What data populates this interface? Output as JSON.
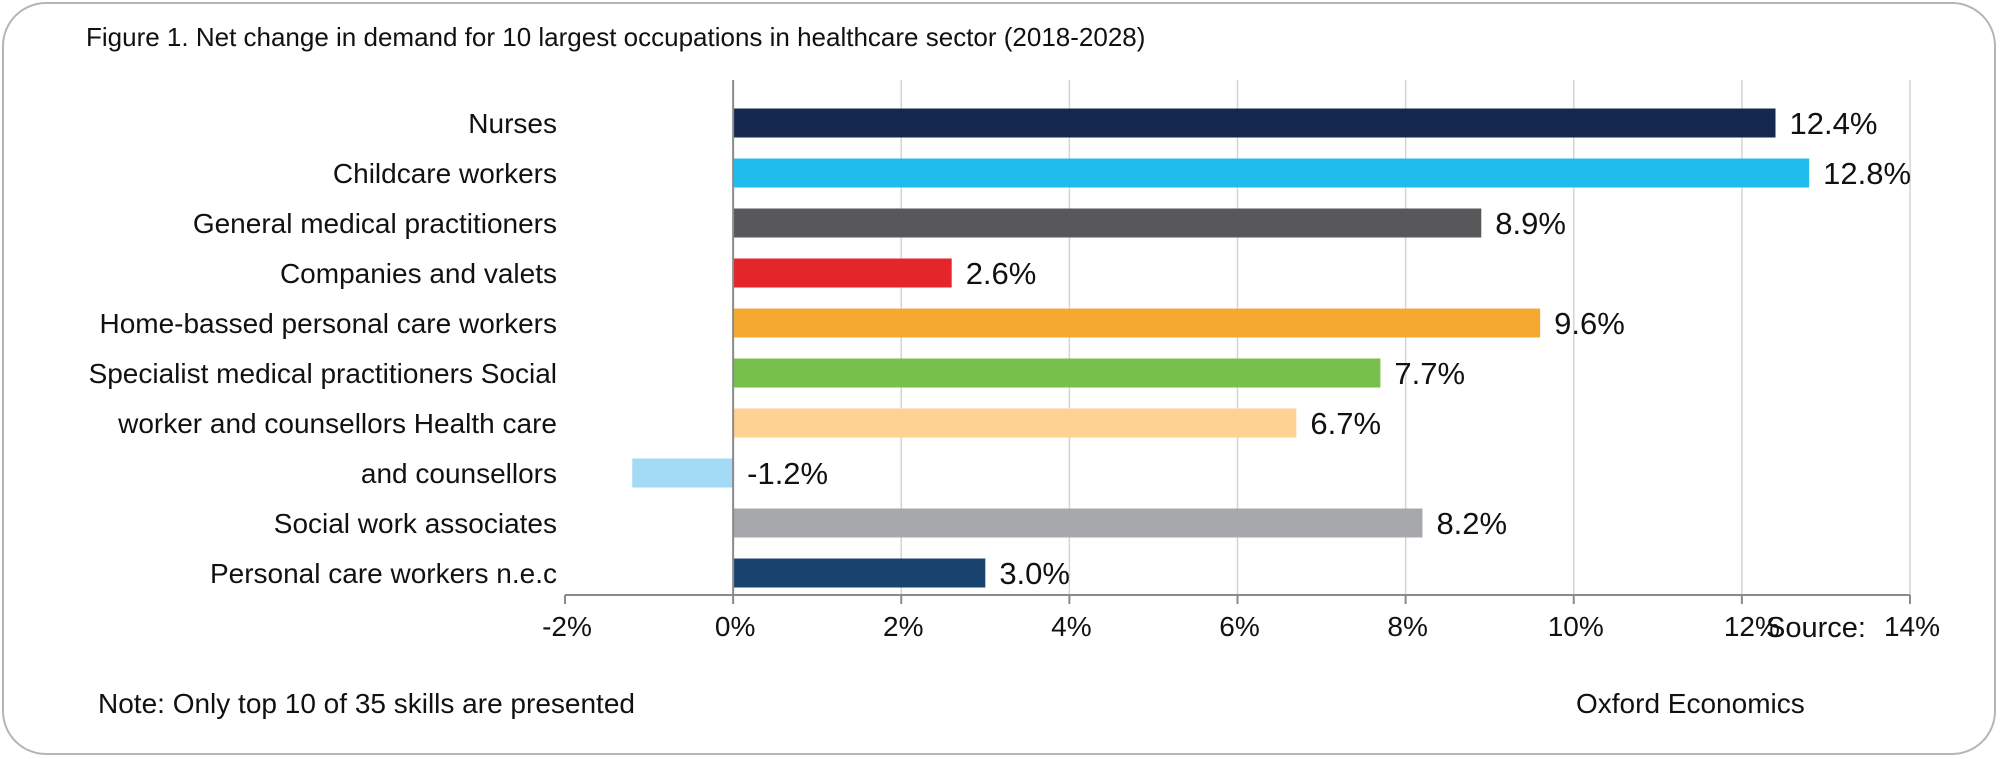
{
  "chart_data": {
    "type": "bar",
    "orientation": "horizontal",
    "title": "Figure 1. Net change in demand for 10 largest occupations in healthcare sector (2018-2028)",
    "categories": [
      "Nurses",
      "Childcare workers",
      "General medical practitioners",
      "Companies and valets",
      "Home-bassed personal care workers",
      "Specialist medical practitioners Social",
      "worker and counsellors Health care",
      "and counsellors",
      "Social work associates",
      "Personal care workers n.e.c"
    ],
    "values": [
      12.4,
      12.8,
      8.9,
      2.6,
      9.6,
      7.7,
      6.7,
      -1.2,
      8.2,
      3.0
    ],
    "data_labels": [
      "12.4%",
      "12.8%",
      "8.9%",
      "2.6%",
      "9.6%",
      "7.7%",
      "6.7%",
      "-1.2%",
      "8.2%",
      "3.0%"
    ],
    "colors": [
      "#15284e",
      "#1fbdee",
      "#58585a",
      "#e4262a",
      "#f6a931",
      "#77c04b",
      "#fed293",
      "#a3dbf6",
      "#a7a8ab",
      "#1a426f"
    ],
    "xlim": [
      -2,
      14
    ],
    "xticks": [
      -2,
      0,
      2,
      4,
      6,
      8,
      10,
      12,
      14
    ],
    "xtick_labels": [
      "-2%",
      "0%",
      "2%",
      "4%",
      "6%",
      "8%",
      "10%",
      "12%",
      "14%"
    ],
    "grid": true,
    "legend": "none"
  },
  "note": "Note: Only top 10 of 35 skills are presented",
  "source_label": "Source:",
  "source_name": "Oxford Economics"
}
